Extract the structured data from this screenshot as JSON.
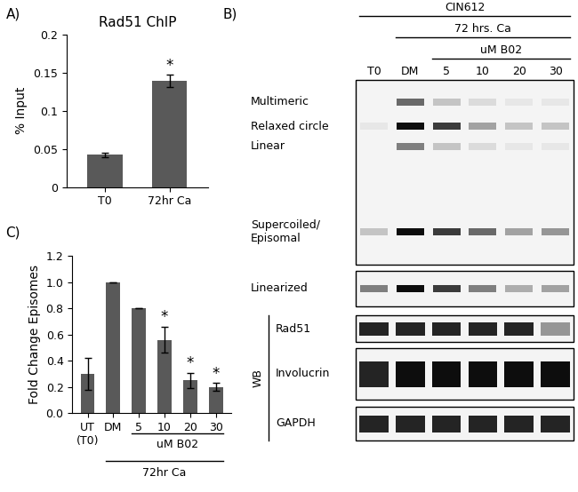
{
  "chart_data": [
    {
      "panel": "A)",
      "type": "bar",
      "title": "Rad51 ChIP",
      "y_label": "% Input",
      "categories": [
        "T0",
        "72hr Ca"
      ],
      "values": [
        0.042,
        0.139
      ],
      "errors": [
        0.003,
        0.008
      ],
      "color": "#595959",
      "ylim": [
        0,
        0.2
      ],
      "yticks": [
        0,
        0.05,
        0.1,
        0.15,
        0.2
      ],
      "annotations": [
        {
          "text": "*",
          "category": "72hr Ca"
        }
      ]
    },
    {
      "panel": "C)",
      "type": "bar",
      "y_label": "Fold Change Episomes",
      "categories": [
        "UT\n(T0)",
        "DM",
        "5",
        "10",
        "20",
        "30"
      ],
      "values": [
        0.3,
        1.0,
        0.8,
        0.56,
        0.25,
        0.2
      ],
      "errors": [
        0.12,
        0.0,
        0.0,
        0.1,
        0.06,
        0.03
      ],
      "color": "#595959",
      "ylim": [
        0,
        1.2
      ],
      "yticks": [
        {
          "value": 0,
          "label": "0.0"
        },
        0.2,
        0.4,
        0.6,
        0.8,
        {
          "value": 1,
          "label": "1.0"
        },
        1.2
      ],
      "annotations": [
        {
          "text": "*",
          "category": "10"
        },
        {
          "text": "*",
          "category": "20"
        },
        {
          "text": "*",
          "category": "30"
        }
      ],
      "groups": [
        {
          "text": "uM B02",
          "from": "5",
          "to": "30"
        },
        {
          "text": "72hr Ca",
          "from": "DM",
          "to": "30"
        }
      ]
    }
  ],
  "blot": {
    "panel": "B)",
    "cell_line": "CIN612",
    "treatment": "72 hrs. Ca",
    "drug": "uM B02",
    "lanes": [
      "T0",
      "DM",
      "5",
      "10",
      "20",
      "30"
    ],
    "treatment_lanes": [
      "DM",
      "30"
    ],
    "drug_lanes": [
      "5",
      "30"
    ],
    "gels": [
      {
        "bands": [
          {
            "label": "Multimeric",
            "intensity": [
              0,
              0.6,
              0.2,
              0.1,
              0.05,
              0.05
            ]
          },
          {
            "label": "Relaxed circle",
            "intensity": [
              0.05,
              1.0,
              0.8,
              0.35,
              0.2,
              0.2
            ]
          },
          {
            "label": "Linear",
            "intensity": [
              0,
              0.5,
              0.2,
              0.1,
              0.05,
              0.05
            ]
          },
          {
            "label": "Supercoiled/\nEpisomal",
            "intensity": [
              0.2,
              1.0,
              0.8,
              0.6,
              0.35,
              0.4
            ]
          }
        ]
      },
      {
        "bands": [
          {
            "label": "Linearized",
            "intensity": [
              0.5,
              1.0,
              0.8,
              0.5,
              0.3,
              0.35
            ]
          }
        ]
      }
    ],
    "western": {
      "label": "WB",
      "bands": [
        {
          "label": "Rad51",
          "intensity": [
            0.9,
            0.9,
            0.9,
            0.9,
            0.9,
            0.4
          ]
        },
        {
          "label": "Involucrin",
          "intensity": [
            0.9,
            1.0,
            1.0,
            1.0,
            1.0,
            1.0
          ]
        },
        {
          "label": "GAPDH",
          "intensity": [
            0.9,
            0.9,
            0.9,
            0.9,
            0.9,
            0.9
          ]
        }
      ]
    }
  }
}
